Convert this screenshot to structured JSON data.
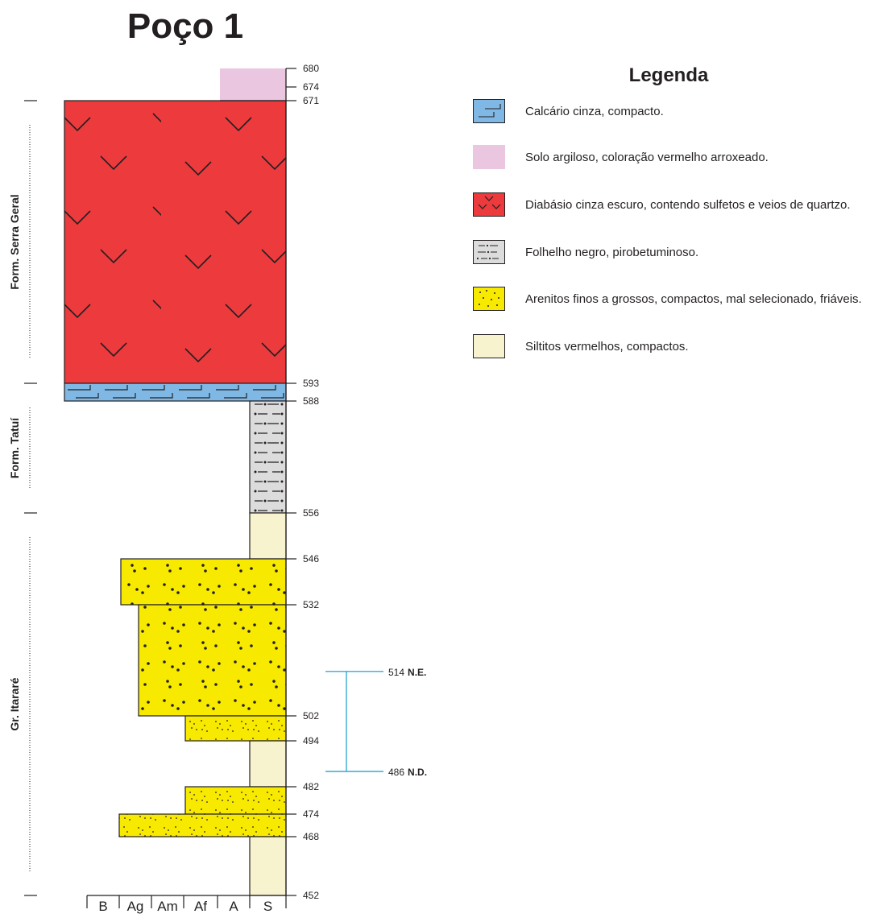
{
  "title": "Poço 1",
  "legend": {
    "title": "Legenda",
    "items": [
      {
        "label": "Calcário cinza, compacto.",
        "pattern": "limestone",
        "color": "#7fb8e4"
      },
      {
        "label": "Solo argiloso, coloração vermelho arroxeado.",
        "pattern": "soil",
        "color": "#eac6e1"
      },
      {
        "label": "Diabásio cinza escuro, contendo sulfetos e veios de quartzo.",
        "pattern": "diabase",
        "color": "#ec3a3d"
      },
      {
        "label": "Folhelho negro, pirobetuminoso.",
        "pattern": "shale",
        "color": "#dcdcdc"
      },
      {
        "label": "Arenitos finos a grossos, compactos, mal selecionado, friáveis.",
        "pattern": "sandstone",
        "color": "#f7ea00"
      },
      {
        "label": "Siltitos vermelhos, compactos.",
        "pattern": "siltstone",
        "color": "#f7f3cf"
      }
    ]
  },
  "depth_labels": [
    "680",
    "674",
    "671",
    "593",
    "588",
    "556",
    "546",
    "532",
    "502",
    "494",
    "482",
    "474",
    "468",
    "452"
  ],
  "formations": [
    {
      "name": "Form. Serra Geral",
      "top": 671,
      "base": 593
    },
    {
      "name": "Form. Tatuí",
      "top": 593,
      "base": 556
    },
    {
      "name": "Gr. Itararé",
      "top": 556,
      "base": 452
    }
  ],
  "columns": [
    "B",
    "Ag",
    "Am",
    "Af",
    "A",
    "S"
  ],
  "layers": [
    {
      "top": 680,
      "base": 671,
      "lithology": "soil",
      "grain": "A"
    },
    {
      "top": 671,
      "base": 593,
      "lithology": "diabase",
      "grain": "B"
    },
    {
      "top": 593,
      "base": 588,
      "lithology": "limestone",
      "grain": "B"
    },
    {
      "top": 588,
      "base": 556,
      "lithology": "shale",
      "grain": "S"
    },
    {
      "top": 556,
      "base": 546,
      "lithology": "siltstone",
      "grain": "S"
    },
    {
      "top": 546,
      "base": 532,
      "lithology": "sandstone",
      "grain": "Ag"
    },
    {
      "top": 532,
      "base": 502,
      "lithology": "sandstone",
      "grain": "Am"
    },
    {
      "top": 502,
      "base": 494,
      "lithology": "sandstone",
      "grain": "Af"
    },
    {
      "top": 494,
      "base": 482,
      "lithology": "siltstone",
      "grain": "S"
    },
    {
      "top": 482,
      "base": 474,
      "lithology": "sandstone",
      "grain": "Af"
    },
    {
      "top": 474,
      "base": 468,
      "lithology": "sandstone",
      "grain": "B"
    },
    {
      "top": 468,
      "base": 452,
      "lithology": "siltstone",
      "grain": "S"
    }
  ],
  "water_levels": [
    {
      "value": "514",
      "label": "N.E."
    },
    {
      "value": "486",
      "label": "N.D."
    }
  ]
}
